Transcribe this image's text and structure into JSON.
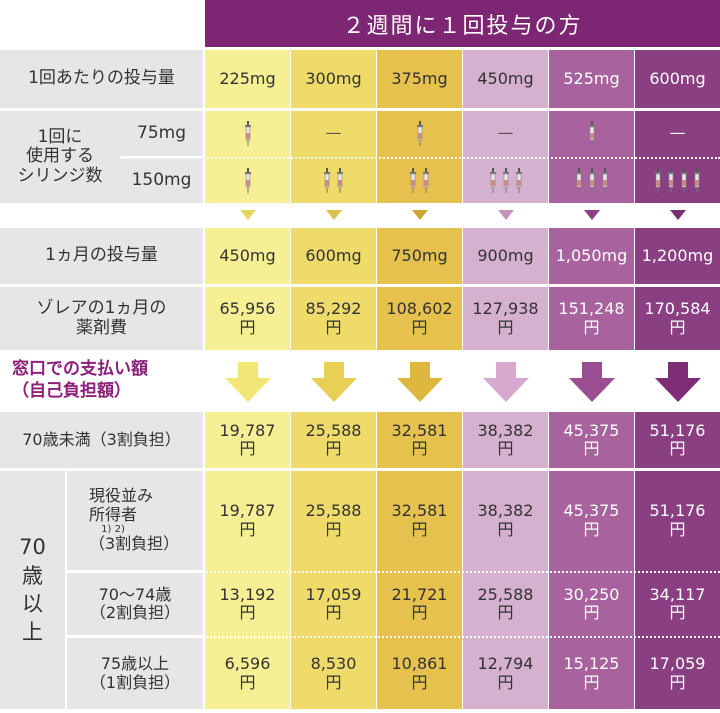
{
  "header": {
    "title": "２週間に１回投与の方"
  },
  "colors": [
    "#f6ef94",
    "#efdb6a",
    "#e6c14e",
    "#d6b0cf",
    "#a8629e",
    "#8a3f83"
  ],
  "rows": {
    "dose": {
      "label": "1回あたりの投与量",
      "values": [
        "225mg",
        "300mg",
        "375mg",
        "450mg",
        "525mg",
        "600mg"
      ]
    },
    "syringe": {
      "label_lines": [
        "1回に",
        "使用する",
        "シリンジ数"
      ],
      "sub75": "75mg",
      "sub150": "150mg",
      "dash": "—",
      "counts75": [
        1,
        0,
        1,
        0,
        1,
        0
      ],
      "counts150": [
        1,
        2,
        2,
        3,
        3,
        4
      ]
    },
    "monthly": {
      "label": "1ヵ月の投与量",
      "values": [
        "450mg",
        "600mg",
        "750mg",
        "900mg",
        "1,050mg",
        "1,200mg"
      ]
    },
    "drugcost": {
      "label_lines": [
        "ゾレアの1ヵ月の",
        "薬剤費"
      ],
      "values": [
        "65,956",
        "85,292",
        "108,602",
        "127,938",
        "151,248",
        "170,584"
      ],
      "unit": "円"
    }
  },
  "section": {
    "line1": "窓口での支払い額",
    "line2": "（自己負担額）"
  },
  "payment": {
    "under70": {
      "label": "70歳未満（3割負担）",
      "values": [
        "19,787",
        "25,588",
        "32,581",
        "38,382",
        "45,375",
        "51,176"
      ]
    },
    "over70_label": [
      "70",
      "歳",
      "以",
      "上"
    ],
    "active": {
      "label_lines": [
        "現役並み",
        "所得者",
        "（3割負担）"
      ],
      "sup": "1) 2)",
      "values": [
        "19,787",
        "25,588",
        "32,581",
        "38,382",
        "45,375",
        "51,176"
      ]
    },
    "age70_74": {
      "label_lines": [
        "70〜74歳",
        "（2割負担）"
      ],
      "values": [
        "13,192",
        "17,059",
        "21,721",
        "25,588",
        "30,250",
        "34,117"
      ]
    },
    "age75": {
      "label_lines": [
        "75歳以上",
        "（1割負担）"
      ],
      "values": [
        "6,596",
        "8,530",
        "10,861",
        "12,794",
        "15,125",
        "17,059"
      ]
    },
    "unit": "円"
  }
}
